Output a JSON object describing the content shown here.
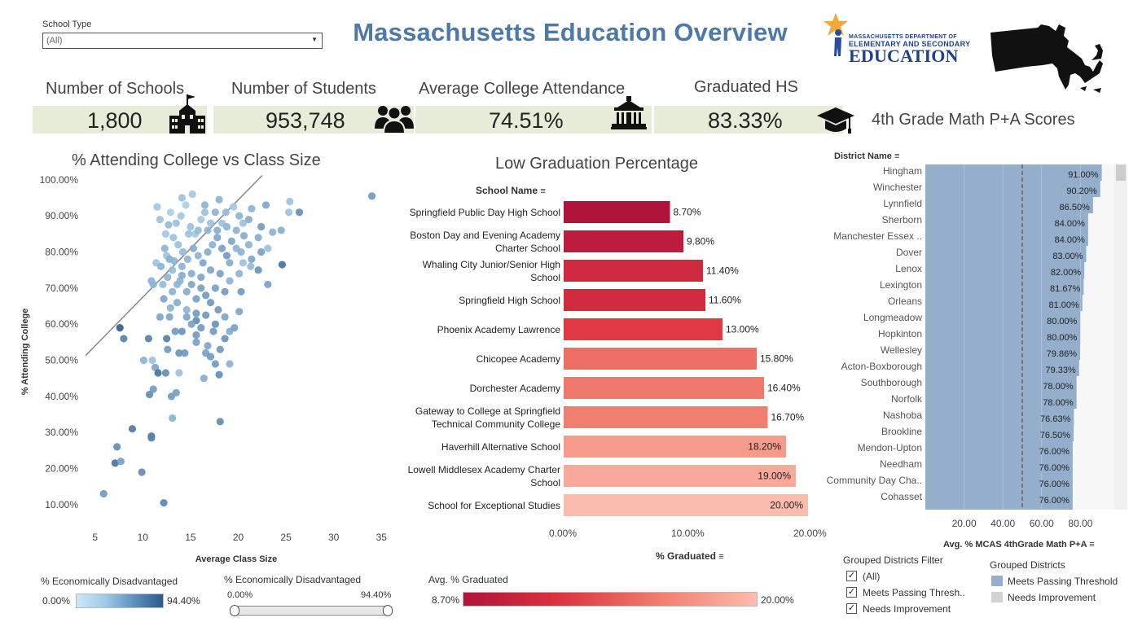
{
  "filter": {
    "label": "School Type",
    "value": "(All)"
  },
  "title": "Massachusetts Education Overview",
  "logo": {
    "small_line1": "MASSACHUSETTS DEPARTMENT OF",
    "small_line2": "ELEMENTARY AND SECONDARY",
    "big": "EDUCATION"
  },
  "kpis": [
    {
      "title": "Number of Schools",
      "value": "1,800",
      "icon": "school-icon"
    },
    {
      "title": "Number of Students",
      "value": "953,748",
      "icon": "people-icon"
    },
    {
      "title": "Average College Attendance",
      "value": "74.51%",
      "icon": "university-icon"
    },
    {
      "title": "Graduated HS",
      "value": "83.33%",
      "icon": "graduation-cap-icon"
    }
  ],
  "math_title": "4th Grade Math P+A Scores",
  "colors": {
    "blue_bar": "#94aecb",
    "red_dark": "#b0143a",
    "red_light": "#fbbcae",
    "scatter_light": "#b8dbf2",
    "scatter_dark": "#2a5a8c",
    "kpi_bg": "#e7ecd9"
  },
  "chart_data": [
    {
      "type": "scatter",
      "title": "% Attending College vs Class Size",
      "xlabel": "Average Class Size",
      "ylabel": "% Attending College",
      "xlim": [
        4,
        36
      ],
      "ylim": [
        5,
        102
      ],
      "xticks": [
        "5",
        "10",
        "15",
        "20",
        "25",
        "30",
        "35"
      ],
      "yticks": [
        "10.00%",
        "20.00%",
        "30.00%",
        "40.00%",
        "50.00%",
        "60.00%",
        "70.00%",
        "80.00%",
        "90.00%",
        "100.00%"
      ],
      "trend_line": [
        [
          0,
          40.5
        ],
        [
          22.8,
          102
        ]
      ],
      "points": [
        [
          5.9,
          13,
          0.5
        ],
        [
          7.1,
          21.5,
          0.8
        ],
        [
          7.3,
          26,
          0.6
        ],
        [
          7.7,
          22,
          0.45
        ],
        [
          7.6,
          59,
          0.95
        ],
        [
          8.0,
          56,
          0.7
        ],
        [
          8.9,
          31,
          0.75
        ],
        [
          9.9,
          19,
          0.6
        ],
        [
          10.7,
          40.5,
          0.6
        ],
        [
          10.9,
          29,
          0.7
        ],
        [
          10.9,
          28.5,
          0.7
        ],
        [
          11.1,
          42,
          0.5
        ],
        [
          12.2,
          10.5,
          0.65
        ],
        [
          10.1,
          50,
          0.3
        ],
        [
          11.0,
          50,
          0.2
        ],
        [
          11.3,
          48,
          0.4
        ],
        [
          11.6,
          46.5,
          0.8
        ],
        [
          12.4,
          46.5,
          0.6
        ],
        [
          13.0,
          40,
          0.5
        ],
        [
          13.1,
          34,
          0.3
        ],
        [
          13.5,
          41,
          0.45
        ],
        [
          13.8,
          46.5,
          0.2
        ],
        [
          14.4,
          52,
          0.5
        ],
        [
          16.4,
          45,
          0.35
        ],
        [
          18.0,
          46,
          0.6
        ],
        [
          18.1,
          33,
          0.6
        ],
        [
          19.1,
          49,
          0.3
        ],
        [
          17.4,
          58,
          0.5
        ],
        [
          16.8,
          54,
          0.4
        ],
        [
          15.6,
          61,
          0.6
        ],
        [
          14.6,
          64,
          0.3
        ],
        [
          13.4,
          58,
          0.5
        ],
        [
          12.5,
          56,
          0.7
        ],
        [
          10.6,
          56,
          0.7
        ],
        [
          11.8,
          62,
          0.4
        ],
        [
          12.2,
          67,
          0.4
        ],
        [
          12.9,
          64.5,
          0.3
        ],
        [
          13.9,
          72,
          0.3
        ],
        [
          11.4,
          77,
          0.2
        ],
        [
          10.9,
          72,
          0.3
        ],
        [
          12.1,
          71,
          0.25
        ],
        [
          12.5,
          79,
          0.2
        ],
        [
          11.5,
          92.5,
          0.15
        ],
        [
          11.8,
          89,
          0.2
        ],
        [
          12.4,
          85,
          0.15
        ],
        [
          12.9,
          91,
          0.1
        ],
        [
          13.5,
          88,
          0.2
        ],
        [
          14.0,
          90,
          0.15
        ],
        [
          14.5,
          93,
          0.1
        ],
        [
          15.0,
          87,
          0.2
        ],
        [
          15.5,
          85,
          0.15
        ],
        [
          16.1,
          89,
          0.15
        ],
        [
          16.5,
          91,
          0.2
        ],
        [
          17.1,
          88,
          0.2
        ],
        [
          17.6,
          91,
          0.3
        ],
        [
          18.0,
          94.5,
          0.3
        ],
        [
          18.3,
          88,
          0.2
        ],
        [
          18.7,
          91,
          0.25
        ],
        [
          19.5,
          92.5,
          0.15
        ],
        [
          20.1,
          90,
          0.3
        ],
        [
          20.5,
          88,
          0.2
        ],
        [
          21.1,
          89,
          0.35
        ],
        [
          21.4,
          92,
          0.3
        ],
        [
          22.4,
          87,
          0.5
        ],
        [
          22.9,
          93,
          0.4
        ],
        [
          25.3,
          91,
          0.2
        ],
        [
          25.4,
          94,
          0.2
        ],
        [
          26.4,
          91,
          0.6
        ],
        [
          34.0,
          95.5,
          0.5
        ],
        [
          14.1,
          95,
          0.2
        ],
        [
          15.2,
          96,
          0.15
        ],
        [
          16.5,
          93,
          0.3
        ],
        [
          12.7,
          87.5,
          0.25
        ],
        [
          13.2,
          84,
          0.2
        ],
        [
          13.7,
          82,
          0.2
        ],
        [
          14.2,
          80,
          0.25
        ],
        [
          14.7,
          78,
          0.3
        ],
        [
          15.3,
          81,
          0.35
        ],
        [
          15.8,
          79,
          0.3
        ],
        [
          16.3,
          77,
          0.4
        ],
        [
          16.8,
          80,
          0.35
        ],
        [
          17.3,
          82,
          0.3
        ],
        [
          17.8,
          84,
          0.4
        ],
        [
          18.3,
          81,
          0.45
        ],
        [
          18.8,
          79,
          0.5
        ],
        [
          19.3,
          83,
          0.4
        ],
        [
          19.8,
          81,
          0.3
        ],
        [
          20.3,
          80,
          0.3
        ],
        [
          21.1,
          82,
          0.3
        ],
        [
          23.1,
          81,
          0.2
        ],
        [
          24.6,
          76.5,
          0.8
        ],
        [
          20.5,
          77,
          0.2
        ],
        [
          21.3,
          76,
          0.25
        ],
        [
          22.1,
          75,
          0.55
        ],
        [
          23.1,
          71,
          0.45
        ],
        [
          20.1,
          74,
          0.3
        ],
        [
          19.1,
          72,
          0.3
        ],
        [
          18.6,
          69,
          0.5
        ],
        [
          17.6,
          70,
          0.45
        ],
        [
          16.6,
          68,
          0.5
        ],
        [
          15.6,
          67,
          0.45
        ],
        [
          14.6,
          69,
          0.35
        ],
        [
          13.6,
          71,
          0.3
        ],
        [
          12.6,
          73,
          0.3
        ],
        [
          13.1,
          75,
          0.25
        ],
        [
          14.1,
          76,
          0.3
        ],
        [
          15.1,
          74,
          0.35
        ],
        [
          16.1,
          73,
          0.4
        ],
        [
          17.1,
          75,
          0.4
        ],
        [
          18.1,
          74,
          0.45
        ],
        [
          19.1,
          77,
          0.35
        ],
        [
          11.9,
          76,
          0.3
        ],
        [
          11.1,
          71,
          0.3
        ],
        [
          13.6,
          66,
          0.35
        ],
        [
          14.6,
          62,
          0.4
        ],
        [
          15.1,
          60,
          0.45
        ],
        [
          15.6,
          57,
          0.5
        ],
        [
          16.1,
          59,
          0.5
        ],
        [
          16.6,
          52,
          0.45
        ],
        [
          17.1,
          51,
          0.5
        ],
        [
          17.6,
          49,
          0.5
        ],
        [
          18.1,
          53,
          0.5
        ],
        [
          18.6,
          56,
          0.55
        ],
        [
          19.1,
          58,
          0.35
        ],
        [
          20.1,
          63.5,
          0.4
        ],
        [
          20.3,
          69,
          0.5
        ],
        [
          21.4,
          78,
          0.4
        ],
        [
          22.4,
          80,
          0.45
        ],
        [
          23.6,
          85.5,
          0.3
        ],
        [
          24.5,
          86,
          0.35
        ],
        [
          22.1,
          84,
          0.35
        ],
        [
          20.6,
          84.5,
          0.35
        ],
        [
          12.3,
          81,
          0.3
        ],
        [
          12.8,
          78,
          0.35
        ],
        [
          13.3,
          77.5,
          0.3
        ],
        [
          14.8,
          85,
          0.2
        ],
        [
          15.8,
          86,
          0.25
        ],
        [
          16.8,
          86,
          0.3
        ],
        [
          17.8,
          86,
          0.35
        ],
        [
          18.8,
          87,
          0.3
        ],
        [
          19.8,
          86,
          0.3
        ],
        [
          13.1,
          69,
          0.3
        ],
        [
          14.1,
          73.5,
          0.35
        ],
        [
          15.1,
          71,
          0.4
        ],
        [
          16.1,
          70,
          0.45
        ],
        [
          17.1,
          66,
          0.5
        ],
        [
          17.9,
          64,
          0.5
        ],
        [
          12.8,
          62,
          0.4
        ],
        [
          15.6,
          63,
          0.5
        ],
        [
          14.1,
          58,
          0.55
        ],
        [
          13.8,
          52,
          0.55
        ],
        [
          15.6,
          55,
          0.45
        ],
        [
          12.6,
          53,
          0.5
        ],
        [
          16.6,
          62.5,
          0.5
        ],
        [
          17.6,
          60,
          0.55
        ],
        [
          18.6,
          62,
          0.4
        ],
        [
          19.6,
          59,
          0.45
        ]
      ]
    },
    {
      "type": "bar",
      "title": "Low Graduation Percentage",
      "ylabel": "School Name",
      "xlabel": "% Graduated",
      "xlim": [
        0,
        20
      ],
      "xticks": [
        "0.00%",
        "10.00%",
        "20.00%"
      ],
      "categories": [
        "Springfield Public Day High School",
        "Boston Day and Evening Academy Charter School",
        "Whaling City Junior/Senior High School",
        "Springfield High School",
        "Phoenix Academy Lawrence",
        "Chicopee Academy",
        "Dorchester Academy",
        "Gateway to College at Springfield Technical Community College",
        "Haverhill Alternative School",
        "Lowell Middlesex Academy Charter School",
        "School for Exceptional Studies"
      ],
      "values": [
        8.7,
        9.8,
        11.4,
        11.6,
        13.0,
        15.8,
        16.4,
        16.7,
        18.2,
        19.0,
        20.0
      ],
      "labels": [
        "8.70%",
        "9.80%",
        "11.40%",
        "11.60%",
        "13.00%",
        "15.80%",
        "16.40%",
        "16.70%",
        "18.20%",
        "19.00%",
        "20.00%"
      ]
    },
    {
      "type": "bar",
      "title": "4th Grade Math P+A Scores",
      "ylabel": "District Name",
      "xlabel": "Avg. % MCAS 4thGrade Math P+A",
      "xlim": [
        0,
        100
      ],
      "xticks": [
        "20.00",
        "40.00",
        "60.00",
        "80.00"
      ],
      "reference_line": 50,
      "categories": [
        "Hingham",
        "Winchester",
        "Lynnfield",
        "Sherborn",
        "Manchester Essex ..",
        "Dover",
        "Lenox",
        "Lexington",
        "Orleans",
        "Longmeadow",
        "Hopkinton",
        "Wellesley",
        "Acton-Boxborough",
        "Southborough",
        "Norfolk",
        "Nashoba",
        "Brookline",
        "Mendon-Upton",
        "Needham",
        "Community Day Cha..",
        "Cohasset"
      ],
      "values": [
        91.0,
        90.2,
        86.5,
        84.0,
        84.0,
        83.0,
        82.0,
        81.67,
        81.0,
        80.0,
        80.0,
        79.86,
        79.33,
        78.0,
        78.0,
        76.63,
        76.5,
        76.0,
        76.0,
        76.0,
        76.0
      ],
      "labels": [
        "91.00%",
        "90.20%",
        "86.50%",
        "84.00%",
        "84.00%",
        "83.00%",
        "82.00%",
        "81.67%",
        "81.00%",
        "80.00%",
        "80.00%",
        "79.86%",
        "79.33%",
        "78.00%",
        "78.00%",
        "76.63%",
        "76.50%",
        "76.00%",
        "76.00%",
        "76.00%",
        "76.00%"
      ]
    }
  ],
  "legend_econ": {
    "title": "% Economically Disadvantaged",
    "min": "0.00%",
    "max": "94.40%"
  },
  "slider_econ": {
    "title": "% Economically Disadvantaged",
    "min": "0.00%",
    "max": "94.40%"
  },
  "legend_grad": {
    "title": "Avg. % Graduated",
    "min": "8.70%",
    "max": "20.00%"
  },
  "districts_filter": {
    "title": "Grouped Districts Filter",
    "items": [
      "(All)",
      "Meets Passing Thresh..",
      "Needs Improvement"
    ]
  },
  "districts_legend": {
    "title": "Grouped Districts",
    "items": [
      "Meets Passing Threshold",
      "Needs Improvement"
    ]
  }
}
